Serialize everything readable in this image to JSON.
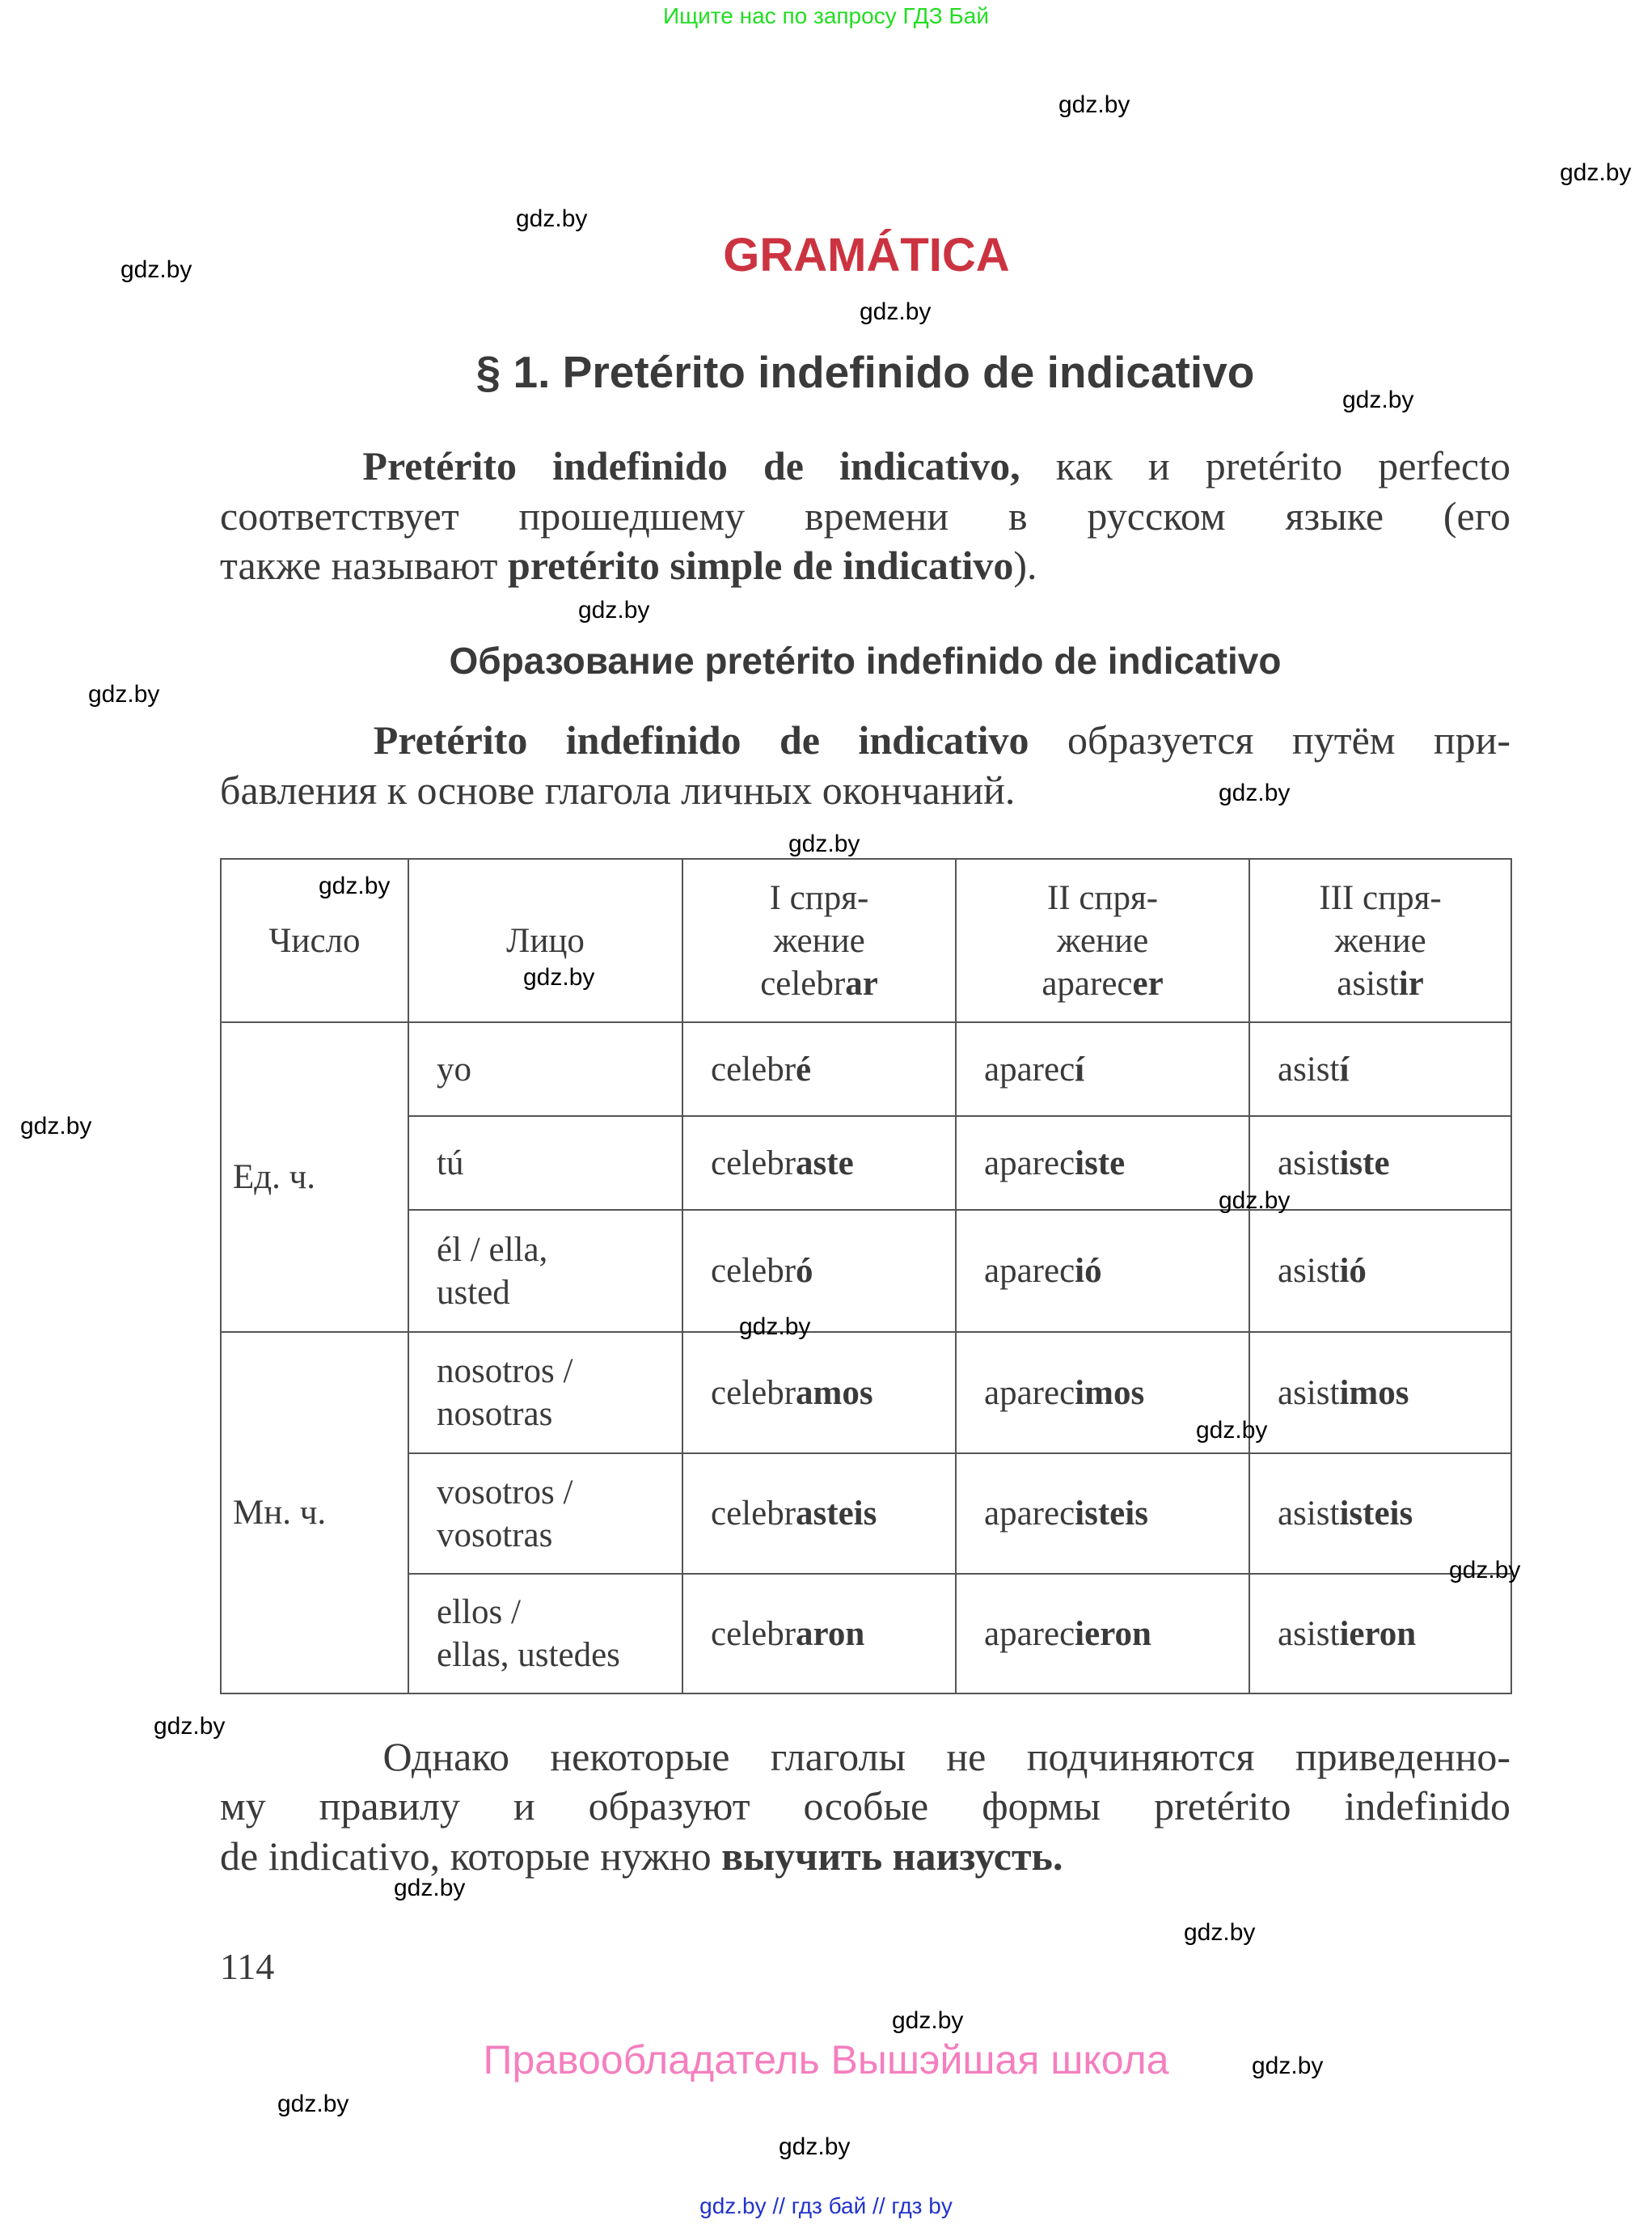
{
  "top_banner": "Ищите нас по запросу ГДЗ Бай",
  "section_title": "GRAMÁTICA",
  "lesson_title": "§ 1. Pretérito indefinido de indicativo",
  "subheading": "Образование pretérito indefinido de indicativo",
  "paragraphs": [
    {
      "lines": [
        {
          "justify": true,
          "segments": [
            {
              "t": "    Pretérito indefinido de indicativo,",
              "b": true
            },
            {
              "t": " как и pretérito perfecto",
              "b": false
            }
          ]
        },
        {
          "justify": true,
          "segments": [
            {
              "t": "соответствует прошедшему времени в русском языке (его",
              "b": false
            }
          ]
        },
        {
          "justify": false,
          "segments": [
            {
              "t": "также называют ",
              "b": false
            },
            {
              "t": "pretérito simple de indicativo",
              "b": true
            },
            {
              "t": ").",
              "b": false
            }
          ]
        }
      ]
    },
    {
      "lines": [
        {
          "justify": true,
          "segments": [
            {
              "t": "    Pretérito indefinido de indicativo",
              "b": true
            },
            {
              "t": " образуется путём при-",
              "b": false
            }
          ]
        },
        {
          "justify": false,
          "segments": [
            {
              "t": "бавления к основе глагола личных окончаний.",
              "b": false
            }
          ]
        }
      ]
    },
    {
      "lines": [
        {
          "justify": true,
          "segments": [
            {
              "t": "    Однако некоторые глаголы не подчиняются приведенно-",
              "b": false
            }
          ]
        },
        {
          "justify": true,
          "segments": [
            {
              "t": "му правилу и образуют особые формы pretérito indefinido",
              "b": false
            }
          ]
        },
        {
          "justify": false,
          "segments": [
            {
              "t": "de indicativo, которые нужно ",
              "b": false
            },
            {
              "t": "выучить наизусть.",
              "b": true
            }
          ]
        }
      ]
    }
  ],
  "table": {
    "header": {
      "number": "Число",
      "person": "Лицо",
      "conjugations": [
        {
          "line1": "I спря-",
          "line2": "жение",
          "stem": "celebr",
          "ending": "ar"
        },
        {
          "line1": "II спря-",
          "line2": "жение",
          "stem": "aparec",
          "ending": "er"
        },
        {
          "line1": "III спря-",
          "line2": "жение",
          "stem": "asist",
          "ending": "ir"
        }
      ]
    },
    "groups": [
      {
        "label": "Ед. ч.",
        "rows": [
          {
            "person": [
              "yo"
            ],
            "forms": [
              {
                "stem": "celebr",
                "ending": "é"
              },
              {
                "stem": "aparec",
                "ending": "í"
              },
              {
                "stem": "asist",
                "ending": "í"
              }
            ]
          },
          {
            "person": [
              "tú"
            ],
            "forms": [
              {
                "stem": "celebr",
                "ending": "aste"
              },
              {
                "stem": "aparec",
                "ending": "iste"
              },
              {
                "stem": "asist",
                "ending": "iste"
              }
            ]
          },
          {
            "person": [
              "él / ella,",
              "usted"
            ],
            "forms": [
              {
                "stem": "celebr",
                "ending": "ó"
              },
              {
                "stem": "aparec",
                "ending": "ió"
              },
              {
                "stem": "asist",
                "ending": "ió"
              }
            ]
          }
        ]
      },
      {
        "label": "Мн. ч.",
        "rows": [
          {
            "person": [
              "nosotros /",
              "nosotras"
            ],
            "forms": [
              {
                "stem": "celebr",
                "ending": "amos"
              },
              {
                "stem": "aparec",
                "ending": "imos"
              },
              {
                "stem": "asist",
                "ending": "imos"
              }
            ]
          },
          {
            "person": [
              "vosotros /",
              "vosotras"
            ],
            "forms": [
              {
                "stem": "celebr",
                "ending": "asteis"
              },
              {
                "stem": "aparec",
                "ending": "isteis"
              },
              {
                "stem": "asist",
                "ending": "isteis"
              }
            ]
          },
          {
            "person": [
              "ellos /",
              "ellas, ustedes"
            ],
            "forms": [
              {
                "stem": "celebr",
                "ending": "aron"
              },
              {
                "stem": "aparec",
                "ending": "ieron"
              },
              {
                "stem": "asist",
                "ending": "ieron"
              }
            ]
          }
        ]
      }
    ]
  },
  "page_number": "114",
  "copyright": "Правообладатель Вышэйшая школа",
  "bottom_links": "gdz.by  //  гдз бай  //  гдз by",
  "watermark": "gdz.by",
  "colors": {
    "section_title": "#cc3340",
    "top_banner": "#22dd22",
    "copyright": "#f47fbf",
    "bottom_links": "#2233cc"
  }
}
